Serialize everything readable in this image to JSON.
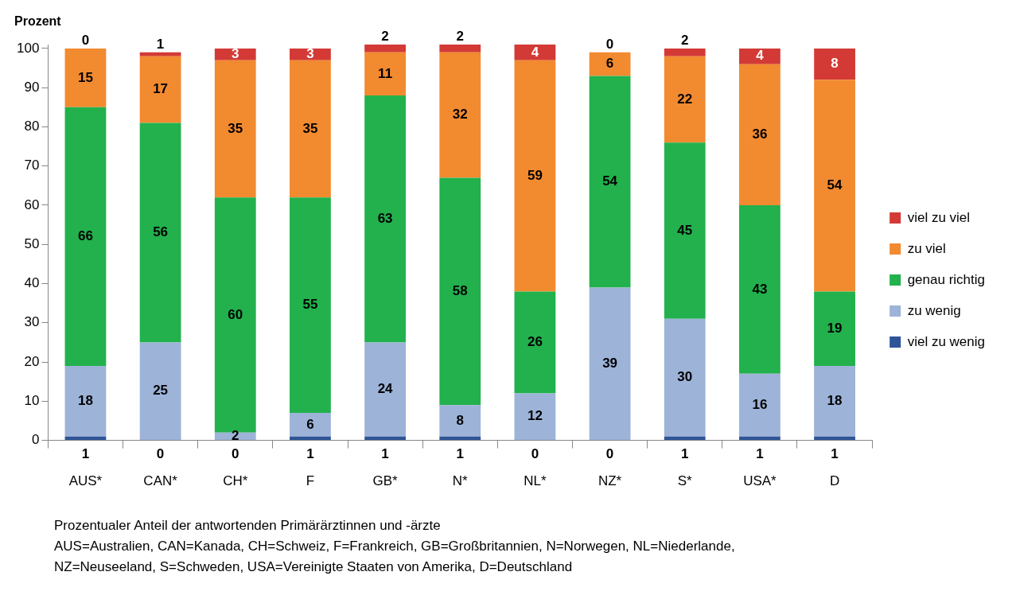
{
  "chart_data": {
    "type": "bar",
    "stacked": true,
    "ylabel": "Prozent",
    "categories": [
      "AUS*",
      "CAN*",
      "CH*",
      "F",
      "GB*",
      "N*",
      "NL*",
      "NZ*",
      "S*",
      "USA*",
      "D"
    ],
    "series": [
      {
        "name": "viel zu wenig",
        "color": "#2e5597",
        "values": [
          1,
          0,
          0,
          1,
          1,
          1,
          0,
          0,
          1,
          1,
          1
        ]
      },
      {
        "name": "zu wenig",
        "color": "#9db3d8",
        "values": [
          18,
          25,
          2,
          6,
          24,
          8,
          12,
          39,
          30,
          16,
          18
        ]
      },
      {
        "name": "genau richtig",
        "color": "#22b14c",
        "values": [
          66,
          56,
          60,
          55,
          63,
          58,
          26,
          54,
          45,
          43,
          19
        ]
      },
      {
        "name": "zu viel",
        "color": "#f28a30",
        "values": [
          15,
          17,
          35,
          35,
          11,
          32,
          59,
          6,
          22,
          36,
          54
        ]
      },
      {
        "name": "viel zu viel",
        "color": "#d33a35",
        "values": [
          0,
          1,
          3,
          3,
          2,
          2,
          4,
          0,
          2,
          4,
          8
        ]
      }
    ],
    "ylim": [
      0,
      101
    ],
    "yticks": [
      0,
      10,
      20,
      30,
      40,
      50,
      60,
      70,
      80,
      90,
      100
    ],
    "grid": false,
    "legend": "right",
    "data_labels": true,
    "annotations": [
      "Prozentualer Anteil der antwortenden Primärärztinnen und -ärzte",
      "AUS=Australien, CAN=Kanada, CH=Schweiz, F=Frankreich, GB=Großbritannien, N=Norwegen, NL=Niederlande,",
      "NZ=Neuseeland, S=Schweden, USA=Vereinigte Staaten von Amerika, D=Deutschland"
    ]
  }
}
